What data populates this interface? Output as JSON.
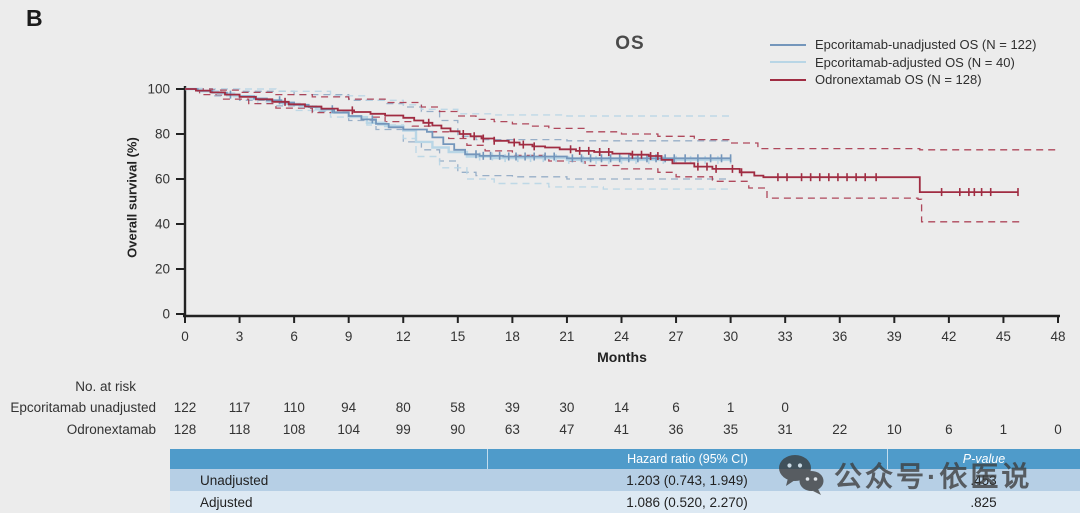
{
  "panel_label": "B",
  "title": "OS",
  "legend": [
    {
      "label": "Epcoritamab-unadjusted OS (N = 122)",
      "color": "#7496bb"
    },
    {
      "label": "Epcoritamab-adjusted OS (N = 40)",
      "color": "#b9d6e6"
    },
    {
      "label": "Odronextamab OS (N = 128)",
      "color": "#a02c42"
    }
  ],
  "chart_data": {
    "type": "line",
    "subtype": "kaplan-meier-step",
    "title": "OS",
    "xlabel": "Months",
    "ylabel": "Overall survival (%)",
    "xlim": [
      0,
      48
    ],
    "ylim": [
      0,
      100
    ],
    "xticks": [
      0,
      3,
      6,
      9,
      12,
      15,
      18,
      21,
      24,
      27,
      30,
      33,
      36,
      39,
      42,
      45,
      48
    ],
    "yticks": [
      0,
      20,
      40,
      60,
      80,
      100
    ],
    "grid": false,
    "legend_position": "top-right",
    "series": [
      {
        "name": "Epcoritamab-unadjusted OS lower 95% CI",
        "color": "#8fa8c4",
        "dashed": true,
        "width": 1.3,
        "points": [
          [
            0,
            100
          ],
          [
            1.5,
            97
          ],
          [
            3,
            95
          ],
          [
            5,
            92.5
          ],
          [
            7,
            90
          ],
          [
            9,
            86
          ],
          [
            10.5,
            82
          ],
          [
            12,
            76.5
          ],
          [
            13,
            73
          ],
          [
            14,
            68
          ],
          [
            15,
            63
          ],
          [
            16,
            61.5
          ],
          [
            18,
            61
          ],
          [
            21,
            60
          ],
          [
            30,
            60
          ]
        ]
      },
      {
        "name": "Epcoritamab-unadjusted OS upper 95% CI",
        "color": "#8fa8c4",
        "dashed": true,
        "width": 1.3,
        "points": [
          [
            0,
            100
          ],
          [
            3,
            99
          ],
          [
            6,
            97.5
          ],
          [
            9,
            95
          ],
          [
            11,
            93.5
          ],
          [
            12,
            92
          ],
          [
            13,
            90
          ],
          [
            14,
            86
          ],
          [
            15,
            79
          ],
          [
            16,
            77.5
          ],
          [
            21,
            77
          ],
          [
            30,
            77
          ]
        ]
      },
      {
        "name": "Epcoritamab-adjusted OS lower 95% CI",
        "color": "#b9d6e6",
        "dashed": true,
        "width": 1.4,
        "points": [
          [
            0,
            100
          ],
          [
            2,
            97
          ],
          [
            4,
            93.5
          ],
          [
            6,
            90.5
          ],
          [
            8,
            87.5
          ],
          [
            10,
            84
          ],
          [
            12,
            78
          ],
          [
            12.7,
            70
          ],
          [
            14,
            65
          ],
          [
            15.5,
            60
          ],
          [
            17,
            58
          ],
          [
            20,
            56.5
          ],
          [
            23,
            55.5
          ],
          [
            30,
            55
          ]
        ]
      },
      {
        "name": "Epcoritamab-adjusted OS upper 95% CI",
        "color": "#b9d6e6",
        "dashed": true,
        "width": 1.4,
        "points": [
          [
            0,
            100
          ],
          [
            5,
            99
          ],
          [
            8,
            97
          ],
          [
            10,
            95
          ],
          [
            12,
            93
          ],
          [
            13,
            91
          ],
          [
            15,
            89
          ],
          [
            17,
            88.5
          ],
          [
            21,
            88
          ],
          [
            30,
            88
          ]
        ]
      },
      {
        "name": "Odronextamab OS lower 95% CI",
        "color": "#a8364b",
        "dashed": true,
        "width": 1.3,
        "points": [
          [
            0,
            100
          ],
          [
            0.8,
            97.5
          ],
          [
            2,
            95.5
          ],
          [
            3.5,
            93.5
          ],
          [
            5,
            91.5
          ],
          [
            7,
            89.5
          ],
          [
            9,
            87.5
          ],
          [
            11,
            85.5
          ],
          [
            12.5,
            83.5
          ],
          [
            13.5,
            81
          ],
          [
            14.5,
            78
          ],
          [
            15.5,
            75
          ],
          [
            16.5,
            72.5
          ],
          [
            18,
            70.5
          ],
          [
            20,
            68
          ],
          [
            22,
            66
          ],
          [
            24,
            64.5
          ],
          [
            26,
            63
          ],
          [
            27,
            61
          ],
          [
            29,
            59
          ],
          [
            31,
            56
          ],
          [
            32,
            51.5
          ],
          [
            40.3,
            51
          ],
          [
            40.5,
            41
          ],
          [
            46,
            40.5
          ]
        ]
      },
      {
        "name": "Odronextamab OS upper 95% CI",
        "color": "#a8364b",
        "dashed": true,
        "width": 1.3,
        "points": [
          [
            0,
            100
          ],
          [
            1.5,
            99.5
          ],
          [
            3,
            98.5
          ],
          [
            5,
            97.5
          ],
          [
            7,
            96.5
          ],
          [
            9,
            95.5
          ],
          [
            11,
            94
          ],
          [
            13,
            92
          ],
          [
            14,
            90
          ],
          [
            15,
            88
          ],
          [
            16,
            86.5
          ],
          [
            17,
            85.5
          ],
          [
            18,
            84.5
          ],
          [
            19,
            83.5
          ],
          [
            20,
            82.5
          ],
          [
            22,
            81
          ],
          [
            24,
            80
          ],
          [
            26,
            79
          ],
          [
            28,
            77.5
          ],
          [
            30,
            76
          ],
          [
            31.5,
            73.5
          ],
          [
            40.4,
            73
          ],
          [
            48,
            73
          ]
        ]
      },
      {
        "name": "Epcoritamab-adjusted OS",
        "n": 40,
        "color": "#b9d6e6",
        "dashed": false,
        "width": 2.4,
        "points": [
          [
            0,
            100
          ],
          [
            0.9,
            99
          ],
          [
            1.8,
            98
          ],
          [
            2.7,
            96.8
          ],
          [
            3.6,
            95.6
          ],
          [
            4.5,
            94.5
          ],
          [
            5.4,
            93.4
          ],
          [
            6.3,
            92.2
          ],
          [
            7.2,
            91
          ],
          [
            8.1,
            89.5
          ],
          [
            9,
            87.5
          ],
          [
            10,
            85
          ],
          [
            11,
            83.5
          ],
          [
            12,
            81.5
          ],
          [
            12.7,
            76.5
          ],
          [
            13.6,
            74
          ],
          [
            14.5,
            72
          ],
          [
            15.5,
            70
          ],
          [
            17,
            69.3
          ],
          [
            21,
            68.5
          ],
          [
            30,
            68.5
          ]
        ],
        "censors": [
          16.2,
          16.9,
          17.6,
          18.3,
          19.0,
          19.7,
          20.4,
          21.1,
          21.9,
          22.6,
          23.3,
          24.0,
          24.8,
          25.5,
          26.3,
          27.0,
          27.8,
          28.6,
          29.3,
          30.0
        ]
      },
      {
        "name": "Epcoritamab-unadjusted OS",
        "n": 122,
        "color": "#7496bb",
        "dashed": false,
        "width": 1.8,
        "points": [
          [
            0,
            100
          ],
          [
            0.7,
            99.2
          ],
          [
            1.5,
            98.4
          ],
          [
            2.3,
            97.5
          ],
          [
            3,
            96.7
          ],
          [
            3.8,
            95.8
          ],
          [
            4.5,
            95
          ],
          [
            5.3,
            94
          ],
          [
            6,
            93
          ],
          [
            6.8,
            92
          ],
          [
            7.5,
            91
          ],
          [
            8.2,
            89.5
          ],
          [
            9,
            88
          ],
          [
            9.7,
            86.5
          ],
          [
            10.5,
            84.5
          ],
          [
            11.2,
            83
          ],
          [
            12,
            82
          ],
          [
            13.3,
            81
          ],
          [
            13.6,
            78.5
          ],
          [
            14.2,
            75.5
          ],
          [
            14.8,
            73
          ],
          [
            15.4,
            71
          ],
          [
            16.2,
            70.3
          ],
          [
            17.5,
            70
          ],
          [
            21,
            69.2
          ],
          [
            30,
            69.2
          ]
        ],
        "censors": [
          2.5,
          5.2,
          8.1,
          10.3,
          16.0,
          16.4,
          16.8,
          17.3,
          17.8,
          18.2,
          18.7,
          19.2,
          19.8,
          20.3,
          21.3,
          21.8,
          22.3,
          22.9,
          23.4,
          23.9,
          24.4,
          24.9,
          25.4,
          25.9,
          26.4,
          26.9,
          27.5,
          28.2,
          28.9,
          29.5,
          30.0
        ]
      },
      {
        "name": "Odronextamab OS",
        "n": 128,
        "color": "#a02c42",
        "dashed": false,
        "width": 1.8,
        "points": [
          [
            0,
            100
          ],
          [
            0.6,
            99.3
          ],
          [
            1.4,
            98.5
          ],
          [
            2.2,
            97.5
          ],
          [
            3,
            96.5
          ],
          [
            3.9,
            95.4
          ],
          [
            4.8,
            94.3
          ],
          [
            5.7,
            93.2
          ],
          [
            6.6,
            92.2
          ],
          [
            7.5,
            91.3
          ],
          [
            8.4,
            90.5
          ],
          [
            9.3,
            89.8
          ],
          [
            10.2,
            89
          ],
          [
            11,
            88.2
          ],
          [
            12,
            87.2
          ],
          [
            12.6,
            86
          ],
          [
            13.1,
            85
          ],
          [
            13.6,
            83.8
          ],
          [
            14.1,
            82.5
          ],
          [
            14.6,
            81.2
          ],
          [
            15.1,
            80
          ],
          [
            15.7,
            79
          ],
          [
            16.3,
            78
          ],
          [
            17,
            77
          ],
          [
            17.8,
            76.2
          ],
          [
            18.4,
            75.3
          ],
          [
            19.1,
            74.5
          ],
          [
            19.8,
            74
          ],
          [
            20.6,
            73.2
          ],
          [
            21.5,
            72.5
          ],
          [
            22.5,
            72
          ],
          [
            23.5,
            71.3
          ],
          [
            24.5,
            70.8
          ],
          [
            25.5,
            70.2
          ],
          [
            26.2,
            68.5
          ],
          [
            26.8,
            67
          ],
          [
            28,
            65.5
          ],
          [
            29,
            64.5
          ],
          [
            30.5,
            63
          ],
          [
            31.3,
            61.5
          ],
          [
            31.8,
            60.8
          ],
          [
            40.3,
            60.8
          ],
          [
            40.4,
            54.2
          ],
          [
            45.8,
            54.2
          ]
        ],
        "censors": [
          5.5,
          9.2,
          13.4,
          15.3,
          15.9,
          16.4,
          17.0,
          18.1,
          18.6,
          19.2,
          21.2,
          21.7,
          22.2,
          22.8,
          23.3,
          24.6,
          25.1,
          25.6,
          26.0,
          28.2,
          28.7,
          29.2,
          30.1,
          30.6,
          32.6,
          33.1,
          33.9,
          34.4,
          34.9,
          35.4,
          35.9,
          36.4,
          36.9,
          37.4,
          38.0,
          41.6,
          42.6,
          43.1,
          43.4,
          43.8,
          44.3,
          45.8
        ]
      }
    ]
  },
  "risk_table": {
    "heading": "No. at risk",
    "rows": [
      {
        "label": "Epcoritamab unadjusted",
        "values": [
          122,
          117,
          110,
          94,
          80,
          58,
          39,
          30,
          14,
          6,
          1,
          0
        ]
      },
      {
        "label": "Odronextamab",
        "values": [
          128,
          118,
          108,
          104,
          99,
          90,
          63,
          47,
          41,
          36,
          35,
          31,
          22,
          10,
          6,
          1,
          0
        ]
      }
    ]
  },
  "hr_table": {
    "columns": {
      "group": "",
      "hazard_ratio": "Hazard ratio (95% CI)",
      "p_value": "P-value"
    },
    "rows": [
      {
        "label": "Unadjusted",
        "hazard_ratio": "1.203 (0.743, 1.949)",
        "p_value": ".453"
      },
      {
        "label": "Adjusted",
        "hazard_ratio": "1.086 (0.520, 2.270)",
        "p_value": ".825"
      }
    ],
    "colors": {
      "header_bg": "#4f9bca",
      "row1_bg": "#b6cfe5",
      "row2_bg": "#dde9f3"
    }
  },
  "watermark": {
    "icon": "wechat-icon",
    "text": "公众号·依医说"
  }
}
